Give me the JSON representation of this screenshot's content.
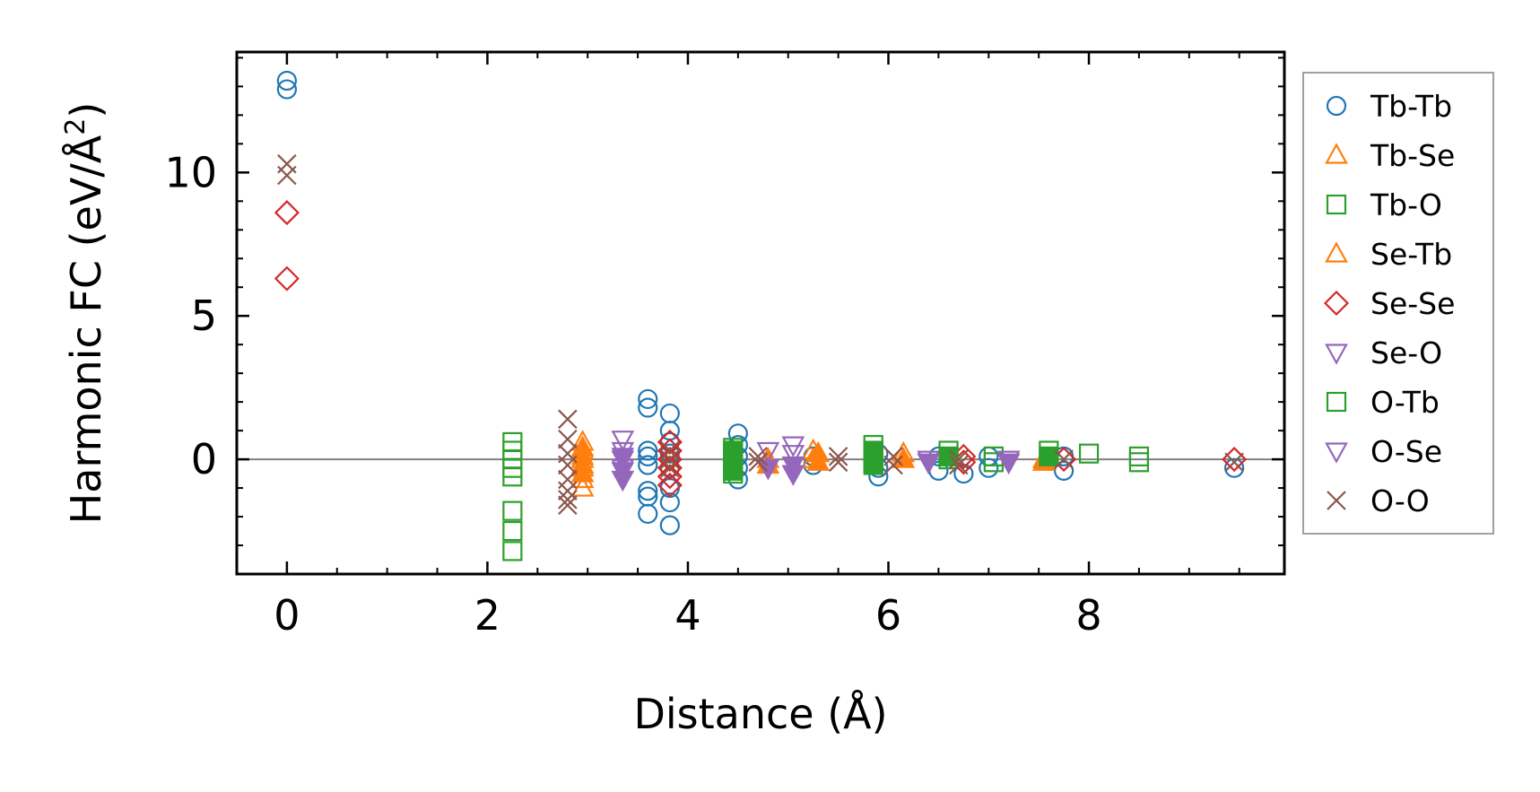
{
  "chart_data": {
    "type": "scatter",
    "xlabel": "Distance (Å)",
    "ylabel_main": "Harmonic FC (eV/Å",
    "ylabel_sup": "2",
    "ylabel_close": ")",
    "xlim": [
      -0.5,
      9.95
    ],
    "ylim": [
      -4.0,
      14.2
    ],
    "xticks": [
      0,
      2,
      4,
      6,
      8
    ],
    "xtick_labels": [
      "0",
      "2",
      "4",
      "6",
      "8"
    ],
    "yticks": [
      0,
      5,
      10
    ],
    "ytick_labels": [
      "0",
      "5",
      "10"
    ],
    "zero_line": true,
    "grid": false,
    "legend_position": "outside-right",
    "series": [
      {
        "name": "Tb-Tb",
        "marker": "circle",
        "color": "#1f77b4",
        "filled": false,
        "points": [
          [
            0,
            13.2
          ],
          [
            0,
            12.9
          ],
          [
            3.6,
            2.1
          ],
          [
            3.6,
            1.8
          ],
          [
            3.6,
            0.3
          ],
          [
            3.6,
            0.1
          ],
          [
            3.6,
            -0.2
          ],
          [
            3.6,
            -1.1
          ],
          [
            3.6,
            -1.3
          ],
          [
            3.6,
            -1.9
          ],
          [
            3.82,
            1.6
          ],
          [
            3.82,
            1.0
          ],
          [
            3.82,
            0.6
          ],
          [
            3.82,
            0.2
          ],
          [
            3.82,
            -0.3
          ],
          [
            3.82,
            -1.0
          ],
          [
            3.82,
            -1.5
          ],
          [
            3.82,
            -2.3
          ],
          [
            4.5,
            0.9
          ],
          [
            4.5,
            0.5
          ],
          [
            4.5,
            0.1
          ],
          [
            4.5,
            -0.3
          ],
          [
            4.5,
            -0.7
          ],
          [
            5.25,
            0.1
          ],
          [
            5.25,
            -0.2
          ],
          [
            5.9,
            0.2
          ],
          [
            5.9,
            -0.3
          ],
          [
            5.9,
            -0.6
          ],
          [
            6.5,
            0.1
          ],
          [
            6.5,
            -0.4
          ],
          [
            6.75,
            -0.5
          ],
          [
            7.0,
            0.1
          ],
          [
            7.0,
            -0.3
          ],
          [
            7.75,
            0.1
          ],
          [
            7.75,
            -0.4
          ],
          [
            9.45,
            -0.3
          ]
        ]
      },
      {
        "name": "Tb-Se",
        "marker": "triangle-up",
        "color": "#ff7f0e",
        "filled": false,
        "points": [
          [
            2.95,
            0.6
          ],
          [
            2.95,
            0.3
          ],
          [
            2.95,
            0.0
          ],
          [
            2.95,
            -0.3
          ],
          [
            2.95,
            -0.7
          ],
          [
            2.95,
            -1.0
          ],
          [
            5.25,
            0.3
          ],
          [
            5.25,
            0.0
          ],
          [
            6.15,
            0.2
          ],
          [
            7.55,
            0.0
          ]
        ]
      },
      {
        "name": "Tb-O",
        "marker": "square",
        "color": "#2ca02c",
        "filled": false,
        "points": [
          [
            2.25,
            0.6
          ],
          [
            2.25,
            0.3
          ],
          [
            2.25,
            0.0
          ],
          [
            2.25,
            -0.3
          ],
          [
            2.25,
            -0.6
          ],
          [
            2.25,
            -1.8
          ],
          [
            2.25,
            -2.5
          ],
          [
            2.25,
            -3.2
          ],
          [
            4.45,
            0.4
          ],
          [
            4.45,
            0.1
          ],
          [
            4.45,
            -0.2
          ],
          [
            4.45,
            -0.5
          ],
          [
            5.85,
            0.5
          ],
          [
            5.85,
            0.2
          ],
          [
            5.85,
            -0.1
          ],
          [
            6.6,
            0.3
          ],
          [
            6.6,
            0.0
          ],
          [
            7.05,
            0.1
          ],
          [
            7.05,
            -0.1
          ],
          [
            7.6,
            0.3
          ],
          [
            8.0,
            0.2
          ],
          [
            8.5,
            0.1
          ],
          [
            8.5,
            -0.1
          ]
        ]
      },
      {
        "name": "Se-Tb",
        "marker": "triangle-up",
        "color": "#ff7f0e",
        "filled": true,
        "points": [
          [
            2.95,
            0.4
          ],
          [
            2.95,
            0.1
          ],
          [
            2.95,
            -0.2
          ],
          [
            2.95,
            -0.5
          ],
          [
            4.8,
            0.0
          ],
          [
            4.8,
            -0.2
          ],
          [
            5.3,
            0.2
          ],
          [
            5.3,
            -0.1
          ],
          [
            6.15,
            0.0
          ],
          [
            7.55,
            -0.1
          ]
        ]
      },
      {
        "name": "Se-Se",
        "marker": "diamond",
        "color": "#d62728",
        "filled": false,
        "points": [
          [
            0,
            8.6
          ],
          [
            0,
            6.3
          ],
          [
            3.82,
            0.6
          ],
          [
            3.82,
            0.3
          ],
          [
            3.82,
            0.0
          ],
          [
            3.82,
            -0.3
          ],
          [
            3.82,
            -0.6
          ],
          [
            3.82,
            -0.9
          ],
          [
            6.75,
            0.1
          ],
          [
            6.75,
            -0.1
          ],
          [
            7.75,
            0.0
          ],
          [
            9.45,
            0.0
          ]
        ]
      },
      {
        "name": "Se-O",
        "marker": "triangle-down",
        "color": "#9467bd",
        "filled": false,
        "points": [
          [
            3.35,
            0.7
          ],
          [
            3.35,
            0.3
          ],
          [
            3.35,
            0.0
          ],
          [
            3.35,
            -0.3
          ],
          [
            4.8,
            0.3
          ],
          [
            5.05,
            0.5
          ],
          [
            5.05,
            0.2
          ],
          [
            6.4,
            0.0
          ],
          [
            7.2,
            0.0
          ]
        ]
      },
      {
        "name": "O-Tb",
        "marker": "square",
        "color": "#2ca02c",
        "filled": true,
        "points": [
          [
            4.45,
            0.3
          ],
          [
            4.45,
            -0.1
          ],
          [
            4.45,
            -0.4
          ],
          [
            5.85,
            0.3
          ],
          [
            5.85,
            0.0
          ],
          [
            5.85,
            -0.2
          ],
          [
            6.6,
            0.1
          ],
          [
            7.6,
            0.1
          ]
        ]
      },
      {
        "name": "O-Se",
        "marker": "triangle-down",
        "color": "#9467bd",
        "filled": true,
        "points": [
          [
            3.35,
            0.1
          ],
          [
            3.35,
            -0.4
          ],
          [
            3.35,
            -0.7
          ],
          [
            4.8,
            -0.3
          ],
          [
            5.05,
            -0.2
          ],
          [
            5.05,
            -0.5
          ],
          [
            6.4,
            -0.1
          ],
          [
            7.2,
            -0.1
          ]
        ]
      },
      {
        "name": "O-O",
        "marker": "x",
        "color": "#8c564b",
        "filled": false,
        "points": [
          [
            0,
            10.3
          ],
          [
            0,
            9.9
          ],
          [
            2.8,
            1.4
          ],
          [
            2.8,
            0.7
          ],
          [
            2.8,
            0.2
          ],
          [
            2.8,
            -0.2
          ],
          [
            2.8,
            -0.7
          ],
          [
            2.8,
            -1.1
          ],
          [
            2.8,
            -1.4
          ],
          [
            2.8,
            -1.6
          ],
          [
            3.82,
            0.3
          ],
          [
            3.82,
            0.0
          ],
          [
            3.82,
            -0.3
          ],
          [
            4.7,
            0.1
          ],
          [
            4.7,
            -0.1
          ],
          [
            5.5,
            0.1
          ],
          [
            5.5,
            -0.1
          ],
          [
            6.05,
            0.1
          ],
          [
            6.05,
            -0.2
          ],
          [
            6.7,
            0.0
          ],
          [
            6.7,
            -0.2
          ],
          [
            7.75,
            0.0
          ],
          [
            9.45,
            -0.1
          ]
        ]
      }
    ]
  }
}
